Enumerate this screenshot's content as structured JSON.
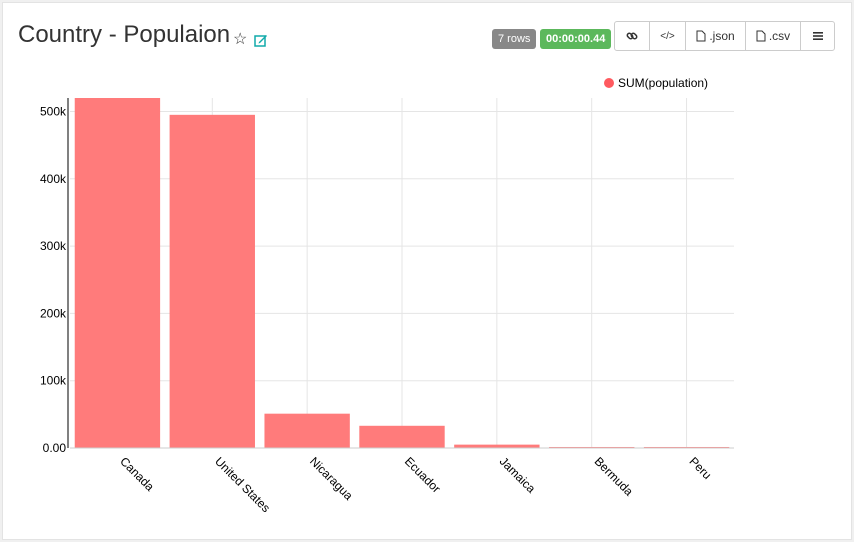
{
  "header": {
    "title": "Country - Populaion",
    "rows_badge": "7 rows",
    "time_badge": "00:00:00.44",
    "json_label": ".json",
    "csv_label": ".csv",
    "icons": [
      "star-icon",
      "edit-icon",
      "link-icon",
      "code-icon",
      "json-file-icon",
      "csv-file-icon",
      "menu-icon"
    ]
  },
  "colors": {
    "bar": "#ff7b7b",
    "legend_dot": "#ff5a5f",
    "grid": "#e5e5e5",
    "time_badge": "#5cb85c",
    "rows_badge": "#888888"
  },
  "chart_data": {
    "type": "bar",
    "categories": [
      "Canada",
      "United States",
      "Nicaragua",
      "Ecuador",
      "Jamaica",
      "Bermuda",
      "Peru"
    ],
    "series": [
      {
        "name": "SUM(population)",
        "values": [
          520000,
          495000,
          51000,
          33000,
          5000,
          1500,
          1500
        ]
      }
    ],
    "ylim": [
      0,
      520000
    ],
    "yticks": [
      0,
      100000,
      200000,
      300000,
      400000,
      500000
    ],
    "ytick_labels": [
      "0.00",
      "100k",
      "200k",
      "300k",
      "400k",
      "500k"
    ],
    "grid": true,
    "legend_position": "top-right"
  }
}
